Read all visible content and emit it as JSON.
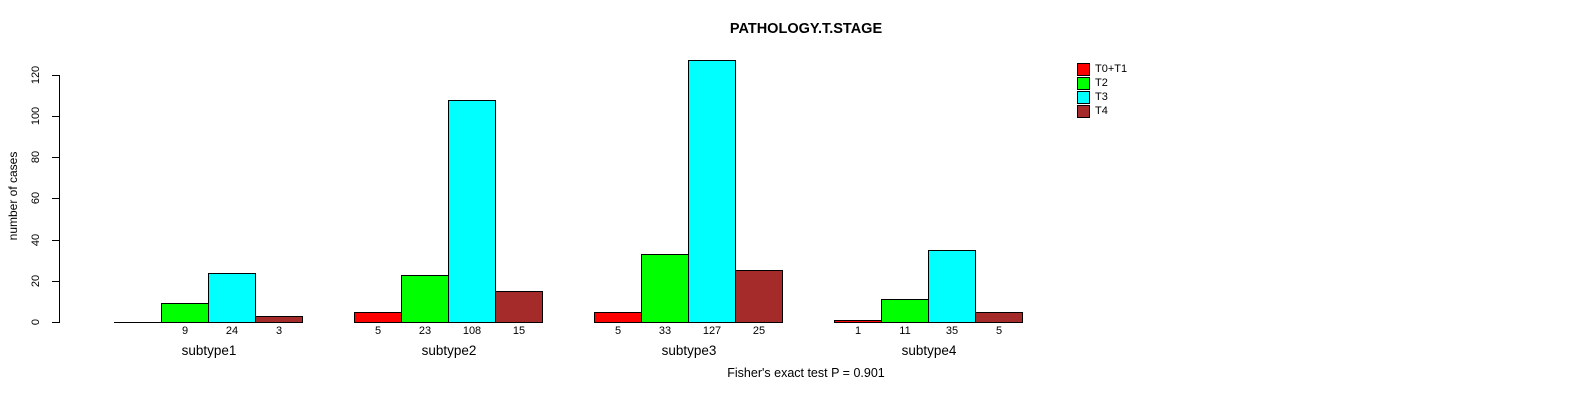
{
  "chart_data": {
    "type": "bar",
    "title": "PATHOLOGY.T.STAGE",
    "xlabel": "",
    "ylabel": "number of cases",
    "ylim": [
      0,
      130
    ],
    "yticks": [
      0,
      20,
      40,
      60,
      80,
      100,
      120
    ],
    "grid": false,
    "legend_position": "top-right",
    "categories": [
      "subtype1",
      "subtype2",
      "subtype3",
      "subtype4"
    ],
    "series": [
      {
        "name": "T0+T1",
        "color": "#FF0000",
        "values": [
          0,
          5,
          5,
          1
        ],
        "labels": [
          "",
          "5",
          "5",
          "1"
        ]
      },
      {
        "name": "T2",
        "color": "#00FF00",
        "values": [
          9,
          23,
          33,
          11
        ],
        "labels": [
          "9",
          "23",
          "33",
          "11"
        ]
      },
      {
        "name": "T3",
        "color": "#00FFFF",
        "values": [
          24,
          108,
          127,
          35
        ],
        "labels": [
          "24",
          "108",
          "127",
          "35"
        ]
      },
      {
        "name": "T4",
        "color": "#A52A2A",
        "values": [
          3,
          15,
          25,
          5
        ],
        "labels": [
          "3",
          "15",
          "25",
          "5"
        ]
      }
    ],
    "annotation": "Fisher's exact test P = 0.901"
  }
}
